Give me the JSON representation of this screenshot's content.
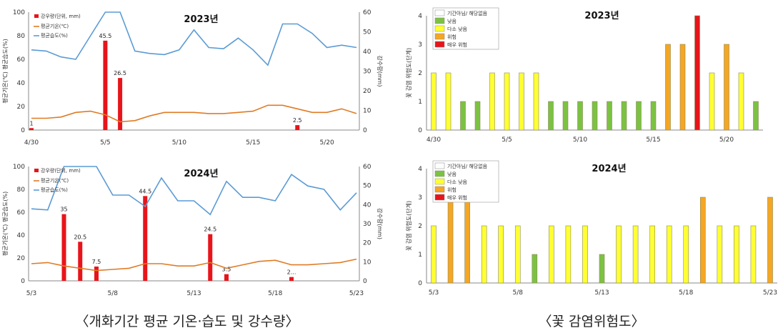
{
  "captions": {
    "left": "〈개화기간 평균 기온·습도 및 강수량〉",
    "right": "〈꽃 감염위험도〉"
  },
  "colors": {
    "rain": "#e8141a",
    "temp": "#e07b25",
    "hum": "#5b9bd5",
    "risk_levels": [
      "#ffffff",
      "#7cc242",
      "#ffff33",
      "#f5a623",
      "#e8141a"
    ]
  },
  "chart_data": [
    {
      "type": "bar+line",
      "title": "2023년",
      "x": [
        "4/30",
        "5/1",
        "5/2",
        "5/3",
        "5/4",
        "5/5",
        "5/6",
        "5/7",
        "5/8",
        "5/9",
        "5/10",
        "5/11",
        "5/12",
        "5/13",
        "5/14",
        "5/15",
        "5/16",
        "5/17",
        "5/18",
        "5/19",
        "5/20",
        "5/21",
        "5/22"
      ],
      "x_ticks": [
        "4/30",
        "5/5",
        "5/10",
        "5/15",
        "5/20"
      ],
      "ylabel_left": "평균기온(℃) 평균습도(%)",
      "ylabel_right": "강수량(mm)",
      "ylim_left": [
        0,
        100
      ],
      "ylim_right": [
        0,
        60
      ],
      "yticks_left": [
        "0",
        "20",
        "40",
        "60",
        "80",
        "100"
      ],
      "yticks_right": [
        "0",
        "10",
        "20",
        "30",
        "40",
        "50",
        "60"
      ],
      "legend": [
        "강우량(단위, mm)",
        "평균기온(℃)",
        "평균습도(%)"
      ],
      "series": [
        {
          "name": "강우량(단위, mm)",
          "kind": "bar",
          "axis": "right",
          "values": [
            1,
            0,
            0,
            0,
            0,
            45.5,
            26.5,
            0,
            0,
            0,
            0,
            0,
            0,
            0,
            0,
            0,
            0,
            0,
            2.5,
            0,
            0,
            0,
            0
          ],
          "labels": [
            "1",
            "",
            "",
            "",
            "",
            "45.5",
            "26.5",
            "",
            "",
            "",
            "",
            "",
            "",
            "",
            "",
            "",
            "",
            "",
            "2.5",
            "",
            "",
            "",
            ""
          ]
        },
        {
          "name": "평균기온(℃)",
          "kind": "line",
          "axis": "left",
          "values": [
            10,
            10,
            11,
            15,
            16,
            13,
            7,
            8,
            12,
            15,
            15,
            15,
            14,
            14,
            15,
            16,
            21,
            21,
            18,
            15,
            15,
            18,
            14
          ]
        },
        {
          "name": "평균습도(%)",
          "kind": "line",
          "axis": "left",
          "values": [
            68,
            67,
            62,
            60,
            80,
            100,
            100,
            67,
            65,
            64,
            68,
            85,
            70,
            69,
            78,
            68,
            55,
            90,
            90,
            82,
            70,
            72,
            70
          ]
        }
      ]
    },
    {
      "type": "bar+line",
      "title": "2024년",
      "x": [
        "5/3",
        "5/4",
        "5/5",
        "5/6",
        "5/7",
        "5/8",
        "5/9",
        "5/10",
        "5/11",
        "5/12",
        "5/13",
        "5/14",
        "5/15",
        "5/16",
        "5/17",
        "5/18",
        "5/19",
        "5/20",
        "5/21",
        "5/22",
        "5/23"
      ],
      "x_ticks": [
        "5/3",
        "5/8",
        "5/13",
        "5/18",
        "5/23"
      ],
      "ylabel_left": "평균기온(℃) 평균습도(%)",
      "ylabel_right": "강수량(mm)",
      "ylim_left": [
        0,
        100
      ],
      "ylim_right": [
        0,
        60
      ],
      "yticks_left": [
        "0",
        "20",
        "40",
        "60",
        "80",
        "100"
      ],
      "yticks_right": [
        "0",
        "10",
        "20",
        "30",
        "40",
        "50",
        "60"
      ],
      "legend": [
        "강우량(단위, mm)",
        "평균기온(℃)",
        "평균습도(%)"
      ],
      "series": [
        {
          "name": "강우량(단위, mm)",
          "kind": "bar",
          "axis": "right",
          "values": [
            0,
            0,
            35,
            20.5,
            7.5,
            0,
            0,
            44.5,
            0,
            0,
            0,
            24.5,
            3.5,
            0,
            0,
            0,
            2,
            0,
            0,
            0,
            0
          ],
          "labels": [
            "",
            "",
            "35",
            "20.5",
            "7.5",
            "",
            "",
            "44.5",
            "",
            "",
            "",
            "24.5",
            "3.5",
            "",
            "",
            "",
            "2...",
            "",
            "",
            "",
            ""
          ]
        },
        {
          "name": "평균기온(℃)",
          "kind": "line",
          "axis": "left",
          "values": [
            15,
            16,
            13,
            11,
            9,
            10,
            11,
            15,
            15,
            13,
            13,
            16,
            11,
            14,
            17,
            18,
            14,
            14,
            15,
            16,
            19
          ]
        },
        {
          "name": "평균습도(%)",
          "kind": "line",
          "axis": "left",
          "values": [
            63,
            62,
            100,
            100,
            100,
            75,
            75,
            65,
            90,
            70,
            70,
            58,
            87,
            73,
            73,
            70,
            93,
            83,
            80,
            62,
            77
          ]
        }
      ]
    },
    {
      "type": "bar",
      "title": "2023년",
      "x": [
        "4/30",
        "5/1",
        "5/2",
        "5/3",
        "5/4",
        "5/5",
        "5/6",
        "5/7",
        "5/8",
        "5/9",
        "5/10",
        "5/11",
        "5/12",
        "5/13",
        "5/14",
        "5/15",
        "5/16",
        "5/17",
        "5/18",
        "5/19",
        "5/20",
        "5/21",
        "5/22"
      ],
      "x_ticks": [
        "4/30",
        "5/5",
        "5/10",
        "5/15",
        "5/20"
      ],
      "ylabel": "꽃 감염 위험도(단계)",
      "ylim": [
        0,
        4
      ],
      "yticks": [
        "0",
        "1",
        "2",
        "3",
        "4"
      ],
      "legend": [
        "기간아님/ 해당없음",
        "낮음",
        "다소 낮음",
        "위험",
        "매우 위험"
      ],
      "values": [
        2,
        2,
        1,
        1,
        2,
        2,
        2,
        2,
        1,
        1,
        1,
        1,
        1,
        1,
        1,
        1,
        3,
        3,
        4,
        2,
        3,
        2,
        1
      ]
    },
    {
      "type": "bar",
      "title": "2024년",
      "x": [
        "5/3",
        "5/4",
        "5/5",
        "5/6",
        "5/7",
        "5/8",
        "5/9",
        "5/10",
        "5/11",
        "5/12",
        "5/13",
        "5/14",
        "5/15",
        "5/16",
        "5/17",
        "5/18",
        "5/19",
        "5/20",
        "5/21",
        "5/22",
        "5/23"
      ],
      "x_ticks": [
        "5/3",
        "5/8",
        "5/13",
        "5/18",
        "5/23"
      ],
      "ylabel": "꽃 감염 위험도(단계)",
      "ylim": [
        0,
        4
      ],
      "yticks": [
        "0",
        "1",
        "2",
        "3",
        "4"
      ],
      "legend": [
        "기간아님/ 해당없음",
        "낮음",
        "다소 낮음",
        "위험",
        "매우 위험"
      ],
      "values": [
        2,
        3,
        3,
        2,
        2,
        2,
        1,
        2,
        2,
        2,
        1,
        2,
        2,
        2,
        2,
        2,
        3,
        2,
        2,
        2,
        3
      ]
    }
  ]
}
